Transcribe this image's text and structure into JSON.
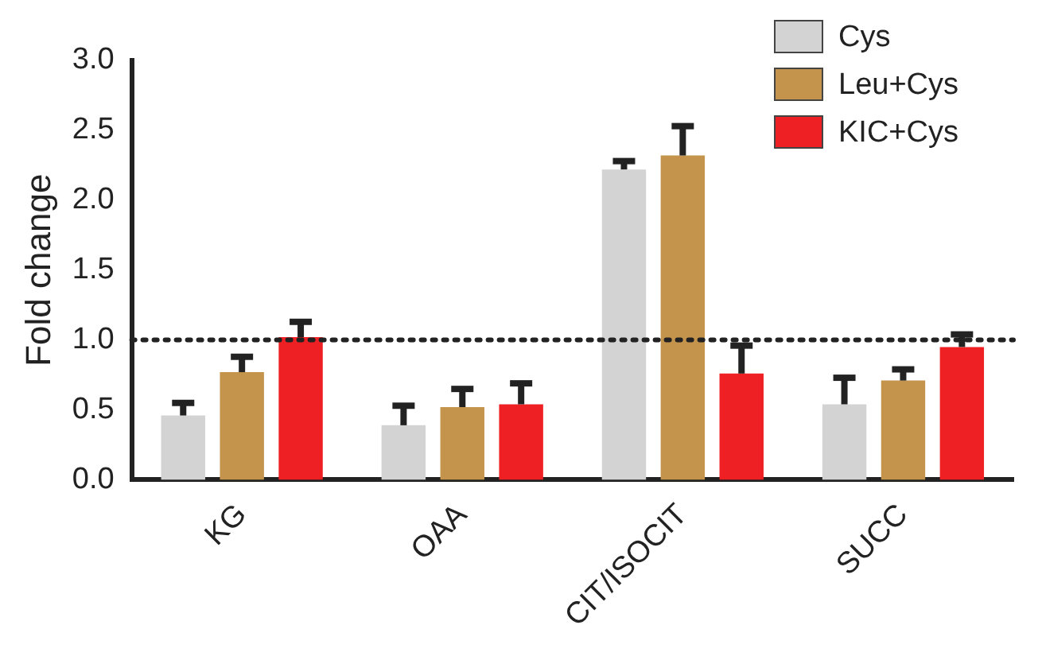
{
  "chart_data": {
    "type": "bar",
    "ylabel": "Fold change",
    "categories": [
      "KG",
      "OAA",
      "CIT/ISOCIT",
      "SUCC"
    ],
    "series": [
      {
        "name": "Cys",
        "color": "#d3d3d3",
        "values": [
          0.46,
          0.39,
          2.22,
          0.54
        ],
        "errors": [
          [
            0.46,
            0.55
          ],
          [
            0.39,
            0.53
          ],
          [
            2.22,
            2.28
          ],
          [
            0.54,
            0.73
          ]
        ]
      },
      {
        "name": "Leu+Cys",
        "color": "#c4944c",
        "values": [
          0.77,
          0.52,
          2.32,
          0.71
        ],
        "errors": [
          [
            0.77,
            0.88
          ],
          [
            0.52,
            0.65
          ],
          [
            2.32,
            2.53
          ],
          [
            0.71,
            0.79
          ]
        ]
      },
      {
        "name": "KIC+Cys",
        "color": "#ee2024",
        "values": [
          1.02,
          0.54,
          0.76,
          0.95
        ],
        "errors": [
          [
            1.02,
            1.13
          ],
          [
            0.54,
            0.69
          ],
          [
            0.76,
            0.96
          ],
          [
            0.95,
            1.04
          ]
        ]
      }
    ],
    "ylim": [
      0,
      3.0
    ],
    "yticks": [
      {
        "value": 0,
        "label": "0.0"
      },
      {
        "value": 0.5,
        "label": "0.5"
      },
      {
        "value": 1,
        "label": "1.0"
      },
      {
        "value": 1.5,
        "label": "1.5"
      },
      {
        "value": 2,
        "label": "2.0"
      },
      {
        "value": 2.5,
        "label": "2.5"
      },
      {
        "value": 3,
        "label": "3.0"
      }
    ],
    "ref_lines": [
      {
        "axis": "y",
        "value": 1,
        "line_style": "dotted",
        "color": "#222222"
      }
    ],
    "legend": "top right",
    "grid": false
  }
}
